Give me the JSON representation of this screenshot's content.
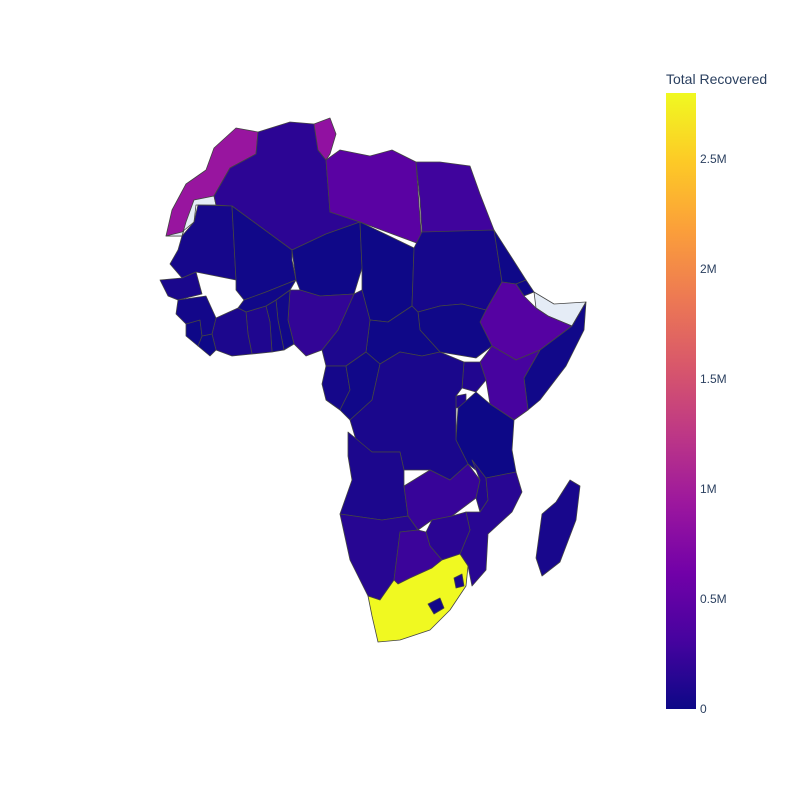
{
  "colorbar": {
    "title": "Total Recovered",
    "ticks": [
      {
        "label": "0",
        "value": 0
      },
      {
        "label": "0.5M",
        "value": 500000
      },
      {
        "label": "1M",
        "value": 1000000
      },
      {
        "label": "1.5M",
        "value": 1500000
      },
      {
        "label": "2M",
        "value": 2000000
      },
      {
        "label": "2.5M",
        "value": 2500000
      }
    ],
    "range": [
      0,
      2800000
    ],
    "colorscale": [
      "#0d0887",
      "#46039f",
      "#7201a8",
      "#9c179e",
      "#bd3786",
      "#d8576b",
      "#ed7953",
      "#fb9f3a",
      "#fdca26",
      "#f0f921"
    ]
  },
  "no_data_color": "#e5ecf6",
  "chart_data": {
    "type": "choropleth",
    "region": "Africa",
    "colorbar_title": "Total Recovered",
    "color_range": [
      0,
      2800000
    ],
    "countries": [
      {
        "name": "South Africa",
        "value": 2800000
      },
      {
        "name": "Morocco",
        "value": 900000
      },
      {
        "name": "Tunisia",
        "value": 850000
      },
      {
        "name": "Libya",
        "value": 450000
      },
      {
        "name": "Ethiopia",
        "value": 420000
      },
      {
        "name": "Kenya",
        "value": 320000
      },
      {
        "name": "Egypt",
        "value": 280000
      },
      {
        "name": "Nigeria",
        "value": 200000
      },
      {
        "name": "Zambia",
        "value": 230000
      },
      {
        "name": "Botswana",
        "value": 250000
      },
      {
        "name": "Zimbabwe",
        "value": 160000
      },
      {
        "name": "Mozambique",
        "value": 150000
      },
      {
        "name": "Malawi",
        "value": 120000
      },
      {
        "name": "Algeria",
        "value": 170000
      },
      {
        "name": "Namibia",
        "value": 140000
      },
      {
        "name": "Uganda",
        "value": 110000
      },
      {
        "name": "Ghana",
        "value": 100000
      },
      {
        "name": "Cameroon",
        "value": 90000
      },
      {
        "name": "Angola",
        "value": 80000
      },
      {
        "name": "DR Congo",
        "value": 70000
      },
      {
        "name": "Rwanda",
        "value": 100000
      },
      {
        "name": "Sudan",
        "value": 50000
      },
      {
        "name": "Senegal",
        "value": 70000
      },
      {
        "name": "Mauritania",
        "value": 50000
      },
      {
        "name": "Mali",
        "value": 20000
      },
      {
        "name": "Niger",
        "value": 10000
      },
      {
        "name": "Chad",
        "value": 5000
      },
      {
        "name": "Central African Republic",
        "value": 10000
      },
      {
        "name": "South Sudan",
        "value": 15000
      },
      {
        "name": "Tanzania",
        "value": 1000
      },
      {
        "name": "Somalia",
        "value": 20000
      },
      {
        "name": "Madagascar",
        "value": 60000
      },
      {
        "name": "Gabon",
        "value": 45000
      },
      {
        "name": "Republic of the Congo",
        "value": 20000
      },
      {
        "name": "Burkina Faso",
        "value": 20000
      },
      {
        "name": "Ivory Coast",
        "value": 80000
      },
      {
        "name": "Guinea",
        "value": 35000
      },
      {
        "name": "Sierra Leone",
        "value": 7000
      },
      {
        "name": "Liberia",
        "value": 7000
      },
      {
        "name": "Benin",
        "value": 25000
      },
      {
        "name": "Togo",
        "value": 35000
      },
      {
        "name": "Eritrea",
        "value": 10000
      },
      {
        "name": "Djibouti",
        "value": 15000
      },
      {
        "name": "Lesotho",
        "value": 30000
      },
      {
        "name": "Eswatini",
        "value": 70000
      },
      {
        "name": "Western Sahara",
        "value": null
      },
      {
        "name": "Somaliland",
        "value": null
      }
    ]
  }
}
